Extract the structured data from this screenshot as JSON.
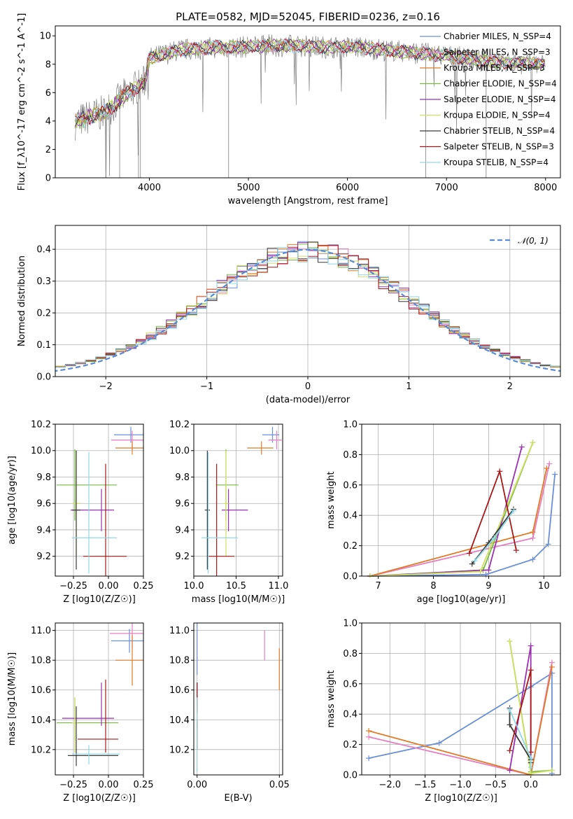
{
  "colors": [
    "#6a8fd8",
    "#e57fbf",
    "#e07b28",
    "#7ab843",
    "#9b30b0",
    "#cfe063",
    "#3a3a3a",
    "#a81818",
    "#90d8e6"
  ],
  "chart_data": [
    {
      "id": "spectrum",
      "type": "line",
      "title": "PLATE=0582, MJD=52045, FIBERID=0236, z=0.16",
      "xlabel": "wavelength [Angstrom, rest frame]",
      "ylabel": "Flux [f_λ10^-17 erg cm^-2 s^-1 A^-1]",
      "xlim": [
        3050,
        8150
      ],
      "ylim": [
        0,
        10.7
      ],
      "xticks": [
        4000,
        5000,
        6000,
        7000,
        8000
      ],
      "yticks": [
        0,
        2,
        4,
        6,
        8,
        10
      ],
      "grid": false,
      "legend_position": "right",
      "data_color": "#808080",
      "data_x": [
        3250,
        3400,
        3550,
        3650,
        3750,
        3850,
        3950,
        4000,
        4100,
        4200,
        4300,
        4500,
        4700,
        4900,
        5200,
        5500,
        5800,
        6100,
        6400,
        6700,
        7000,
        7300,
        7600,
        8000
      ],
      "data_y": [
        3.9,
        4.3,
        4.6,
        5.2,
        5.8,
        6.3,
        6.7,
        8.4,
        8.6,
        8.8,
        9.0,
        9.1,
        9.2,
        9.2,
        9.3,
        9.3,
        9.2,
        9.2,
        9.0,
        8.8,
        8.6,
        8.3,
        8.1,
        8.0
      ],
      "series": [
        {
          "name": "Chabrier MILES, N_SSP=4"
        },
        {
          "name": "Salpeter MILES, N_SSP=3"
        },
        {
          "name": "Kroupa MILES, N_SSP=3"
        },
        {
          "name": "Chabrier ELODIE, N_SSP=4"
        },
        {
          "name": "Salpeter ELODIE, N_SSP=4"
        },
        {
          "name": "Kroupa ELODIE, N_SSP=4"
        },
        {
          "name": "Chabrier STELIB, N_SSP=4"
        },
        {
          "name": "Salpeter STELIB, N_SSP=3"
        },
        {
          "name": "Kroupa STELIB, N_SSP=4"
        }
      ]
    },
    {
      "id": "residuals",
      "type": "line",
      "xlabel": "(data-model)/error",
      "ylabel": "Normed distribution",
      "xlim": [
        -2.5,
        2.5
      ],
      "ylim": [
        0,
        0.475
      ],
      "xticks": [
        -2,
        -1,
        0,
        1,
        2
      ],
      "xticklabels": [
        "−2",
        "−1",
        "0",
        "1",
        "2"
      ],
      "yticks": [
        0.0,
        0.1,
        0.2,
        0.3,
        0.4
      ],
      "grid": true,
      "legend_position": "top-right",
      "reference": {
        "name": "N(0,1)",
        "mean": 0,
        "sigma": 1,
        "color": "#5b8bd6"
      }
    },
    {
      "id": "age-vs-Z",
      "type": "scatter",
      "xlabel": "Z [log10(Z/Z☉)]",
      "ylabel": "age  [log10(age/yr)]",
      "xlim": [
        -0.38,
        0.25
      ],
      "ylim": [
        9.05,
        10.2
      ],
      "xticks": [
        -0.25,
        0.0,
        0.25
      ],
      "xticklabels": [
        "−0.25",
        "0.00",
        "0.25"
      ],
      "yticks": [
        9.2,
        9.4,
        9.6,
        9.8,
        10.0,
        10.2
      ],
      "grid": true,
      "points": [
        {
          "x": 0.16,
          "y": 10.12,
          "xerr": [
            0.12,
            0.15
          ],
          "yerr": [
            0.06,
            0.06
          ]
        },
        {
          "x": 0.17,
          "y": 10.08,
          "xerr": [
            0.15,
            0.12
          ],
          "yerr": [
            0.07,
            0.07
          ]
        },
        {
          "x": 0.17,
          "y": 10.02,
          "xerr": [
            0.12,
            0.1
          ],
          "yerr": [
            0.05,
            0.05
          ]
        },
        {
          "x": -0.24,
          "y": 9.74,
          "xerr": [
            0.13,
            0.3
          ],
          "yerr": [
            0.27,
            0.27
          ]
        },
        {
          "x": -0.05,
          "y": 9.55,
          "xerr": [
            0.22,
            0.09
          ],
          "yerr": [
            0.16,
            0.16
          ]
        },
        {
          "x": -0.23,
          "y": 9.6,
          "xerr": [
            0.03,
            0.03
          ],
          "yerr": [
            0.4,
            0.4
          ]
        },
        {
          "x": -0.23,
          "y": 9.55,
          "xerr": [
            0.03,
            0.03
          ],
          "yerr": [
            0.45,
            0.45
          ]
        },
        {
          "x": -0.02,
          "y": 9.2,
          "xerr": [
            0.16,
            0.15
          ],
          "yerr": [
            0.15,
            0.7
          ]
        },
        {
          "x": -0.14,
          "y": 9.34,
          "xerr": [
            0.12,
            0.2
          ],
          "yerr": [
            0.27,
            0.65
          ]
        }
      ]
    },
    {
      "id": "age-vs-mass",
      "type": "scatter",
      "xlabel": "mass [log10(M/M☉)]",
      "ylabel": "",
      "xlim": [
        10.0,
        11.05
      ],
      "ylim": [
        9.05,
        10.2
      ],
      "xticks": [
        10.0,
        10.5,
        11.0
      ],
      "xticklabels": [
        "10.0",
        "10.5",
        "11.0"
      ],
      "yticks": [
        9.2,
        9.4,
        9.6,
        9.8,
        10.0,
        10.2
      ],
      "grid": true,
      "points": [
        {
          "x": 10.93,
          "y": 10.12,
          "xerr": [
            0.12,
            0.08
          ],
          "yerr": [
            0.06,
            0.06
          ]
        },
        {
          "x": 10.98,
          "y": 10.08,
          "xerr": [
            0.1,
            0.06
          ],
          "yerr": [
            0.07,
            0.07
          ]
        },
        {
          "x": 10.8,
          "y": 10.02,
          "xerr": [
            0.17,
            0.14
          ],
          "yerr": [
            0.05,
            0.05
          ]
        },
        {
          "x": 10.38,
          "y": 9.74,
          "xerr": [
            0.12,
            0.15
          ],
          "yerr": [
            0.27,
            0.27
          ]
        },
        {
          "x": 10.41,
          "y": 9.55,
          "xerr": [
            0.08,
            0.23
          ],
          "yerr": [
            0.16,
            0.16
          ]
        },
        {
          "x": 10.38,
          "y": 9.6,
          "xerr": [
            0.03,
            0.03
          ],
          "yerr": [
            0.4,
            0.4
          ]
        },
        {
          "x": 10.16,
          "y": 9.55,
          "xerr": [
            0.03,
            0.03
          ],
          "yerr": [
            0.45,
            0.45
          ]
        },
        {
          "x": 10.27,
          "y": 9.2,
          "xerr": [
            0.1,
            0.21
          ],
          "yerr": [
            0.15,
            0.7
          ]
        },
        {
          "x": 10.17,
          "y": 9.34,
          "xerr": [
            0.08,
            0.35
          ],
          "yerr": [
            0.27,
            0.65
          ]
        }
      ]
    },
    {
      "id": "weight-vs-age",
      "type": "line",
      "xlabel": "age  [log10(age/yr)]",
      "ylabel": "mass weight",
      "xlim": [
        6.7,
        10.3
      ],
      "ylim": [
        0,
        1.0
      ],
      "xticks": [
        7,
        8,
        9,
        10
      ],
      "yticks": [
        0.0,
        0.2,
        0.4,
        0.6,
        0.8,
        1.0
      ],
      "grid": true,
      "series": [
        {
          "x": [
            6.85,
            8.95,
            9.8,
            10.08,
            10.2
          ],
          "y": [
            0.0,
            0.01,
            0.11,
            0.21,
            0.67
          ]
        },
        {
          "x": [
            6.85,
            9.8,
            10.1
          ],
          "y": [
            0.0,
            0.25,
            0.74
          ]
        },
        {
          "x": [
            6.85,
            9.8,
            10.05
          ],
          "y": [
            0.0,
            0.29,
            0.71
          ]
        },
        {
          "x": [
            6.85,
            8.9,
            9.8
          ],
          "y": [
            0.0,
            0.04,
            0.88
          ]
        },
        {
          "x": [
            6.85,
            9.0,
            9.6
          ],
          "y": [
            0.0,
            0.04,
            0.85
          ]
        },
        {
          "x": [
            6.85,
            8.85,
            9.8
          ],
          "y": [
            0.0,
            0.03,
            0.88
          ]
        },
        {
          "x": [
            8.7,
            9.0,
            9.45
          ],
          "y": [
            0.08,
            0.22,
            0.44
          ]
        },
        {
          "x": [
            8.65,
            9.2,
            9.5
          ],
          "y": [
            0.15,
            0.69,
            0.17
          ]
        },
        {
          "x": [
            8.75,
            9.1,
            9.45
          ],
          "y": [
            0.1,
            0.25,
            0.43
          ]
        }
      ]
    },
    {
      "id": "mass-vs-Z",
      "type": "scatter",
      "xlabel": "Z [log10(Z/Z☉)]",
      "ylabel": "mass [log10(M/M☉)]",
      "xlim": [
        -0.38,
        0.25
      ],
      "ylim": [
        10.03,
        11.05
      ],
      "xticks": [
        -0.25,
        0.0,
        0.25
      ],
      "xticklabels": [
        "−0.25",
        "0.00",
        "0.25"
      ],
      "yticks": [
        10.2,
        10.4,
        10.6,
        10.8,
        11.0
      ],
      "grid": true,
      "points": [
        {
          "x": 0.15,
          "y": 10.93,
          "xerr": [
            0.13,
            0.12
          ],
          "yerr": [
            0.08,
            0.08
          ]
        },
        {
          "x": 0.17,
          "y": 10.98,
          "xerr": [
            0.16,
            0.1
          ],
          "yerr": [
            0.1,
            0.1
          ]
        },
        {
          "x": 0.17,
          "y": 10.8,
          "xerr": [
            0.12,
            0.12
          ],
          "yerr": [
            0.17,
            0.17
          ]
        },
        {
          "x": -0.24,
          "y": 10.38,
          "xerr": [
            0.13,
            0.31
          ],
          "yerr": [
            0.12,
            0.17
          ]
        },
        {
          "x": -0.05,
          "y": 10.41,
          "xerr": [
            0.28,
            0.09
          ],
          "yerr": [
            0.05,
            0.24
          ]
        },
        {
          "x": -0.24,
          "y": 10.38,
          "xerr": [
            0.02,
            0.02
          ],
          "yerr": [
            0.2,
            0.17
          ]
        },
        {
          "x": -0.23,
          "y": 10.16,
          "xerr": [
            0.06,
            0.3
          ],
          "yerr": [
            0.07,
            0.33
          ]
        },
        {
          "x": -0.02,
          "y": 10.27,
          "xerr": [
            0.2,
            0.09
          ],
          "yerr": [
            0.09,
            0.4
          ]
        },
        {
          "x": -0.14,
          "y": 10.17,
          "xerr": [
            0.12,
            0.22
          ],
          "yerr": [
            0.07,
            0.06
          ]
        }
      ]
    },
    {
      "id": "mass-vs-ebv",
      "type": "scatter",
      "xlabel": "E(B-V)",
      "ylabel": "",
      "xlim": [
        -0.002,
        0.052
      ],
      "ylim": [
        10.03,
        11.05
      ],
      "xticks": [
        0.0,
        0.05
      ],
      "xticklabels": [
        "0.00",
        "0.05"
      ],
      "yticks": [
        10.2,
        10.4,
        10.6,
        10.8,
        11.0
      ],
      "grid": true,
      "points": [
        {
          "x": 0.0,
          "y": 10.9,
          "xerr": [
            0,
            0
          ],
          "yerr": [
            0.2,
            0.2
          ]
        },
        {
          "x": 0.041,
          "y": 10.9,
          "xerr": [
            0,
            0
          ],
          "yerr": [
            0.1,
            0.1
          ]
        },
        {
          "x": 0.05,
          "y": 10.72,
          "xerr": [
            0,
            0
          ],
          "yerr": [
            0.12,
            0.16
          ]
        },
        {
          "x": 0.0,
          "y": 10.55,
          "xerr": [
            0,
            0
          ],
          "yerr": [
            0.1,
            0.1
          ]
        },
        {
          "x": 0.0,
          "y": 10.5,
          "xerr": [
            0,
            0
          ],
          "yerr": [
            0.15,
            0.15
          ]
        },
        {
          "x": 0.0,
          "y": 10.4,
          "xerr": [
            0,
            0
          ],
          "yerr": [
            0.1,
            0.1
          ]
        },
        {
          "x": 0.0,
          "y": 10.3,
          "xerr": [
            0,
            0
          ],
          "yerr": [
            0.1,
            0.1
          ]
        },
        {
          "x": 0.0,
          "y": 10.55,
          "xerr": [
            0,
            0
          ],
          "yerr": [
            0.1,
            0.1
          ]
        },
        {
          "x": 0.0,
          "y": 10.3,
          "xerr": [
            0,
            0
          ],
          "yerr": [
            0.25,
            0.25
          ]
        }
      ]
    },
    {
      "id": "weight-vs-Z",
      "type": "line",
      "xlabel": "Z [log10(Z/Z☉)]",
      "ylabel": "mass weight",
      "xlim": [
        -2.4,
        0.42
      ],
      "ylim": [
        0,
        1.0
      ],
      "xticks": [
        -2.0,
        -1.5,
        -1.0,
        -0.5,
        0.0
      ],
      "xticklabels": [
        "−2.0",
        "−1.5",
        "−1.0",
        "−0.5",
        "0.0"
      ],
      "yticks": [
        0.0,
        0.2,
        0.4,
        0.6,
        0.8,
        1.0
      ],
      "grid": true,
      "series": [
        {
          "x": [
            -2.3,
            -1.3,
            0.0,
            0.3,
            0.3
          ],
          "y": [
            0.11,
            0.21,
            0.58,
            0.67,
            0.01
          ]
        },
        {
          "x": [
            -2.3,
            0.0,
            0.3
          ],
          "y": [
            0.25,
            0.0,
            0.74
          ]
        },
        {
          "x": [
            -2.3,
            0.0,
            0.3
          ],
          "y": [
            0.29,
            0.0,
            0.71
          ]
        },
        {
          "x": [
            -0.3,
            0.0,
            0.3
          ],
          "y": [
            0.88,
            0.02,
            0.03
          ]
        },
        {
          "x": [
            -0.3,
            0.0,
            0.0
          ],
          "y": [
            0.03,
            0.85,
            0.11
          ]
        },
        {
          "x": [
            -0.3,
            0.0,
            0.3
          ],
          "y": [
            0.88,
            0.01,
            0.03
          ]
        },
        {
          "x": [
            -0.3,
            -0.3,
            0.0,
            0.0
          ],
          "y": [
            0.44,
            0.33,
            0.1,
            0.08
          ]
        },
        {
          "x": [
            -0.3,
            0.0,
            0.0
          ],
          "y": [
            0.16,
            0.69,
            0.15
          ]
        },
        {
          "x": [
            -0.3,
            0.0,
            0.0
          ],
          "y": [
            0.43,
            0.11,
            0.05
          ]
        }
      ]
    }
  ]
}
